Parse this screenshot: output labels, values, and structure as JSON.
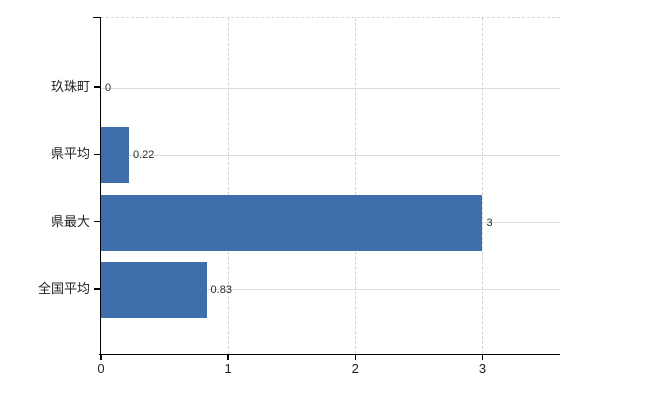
{
  "chart_data": {
    "type": "bar",
    "orientation": "horizontal",
    "title": "",
    "xlabel": "",
    "ylabel": "",
    "categories": [
      "玖珠町",
      "県平均",
      "県最大",
      "全国平均"
    ],
    "values": [
      0,
      0.22,
      3,
      0.83
    ],
    "value_labels": [
      "0",
      "0.22",
      "3",
      "0.83"
    ],
    "x_ticks": [
      0,
      1,
      2,
      3
    ],
    "x_tick_labels": [
      "0",
      "1",
      "2",
      "3"
    ],
    "xlim": [
      0,
      3.61
    ],
    "grid": true,
    "legend": false,
    "colors": {
      "bar": "#3f6fab",
      "axis": "#000000",
      "grid_horizontal": "#d9e0d7",
      "grid_vertical": "#d6d1db",
      "plot_top_border": "#d8d8d8",
      "text": "#1f1f1f",
      "background": "#ffffff"
    }
  }
}
